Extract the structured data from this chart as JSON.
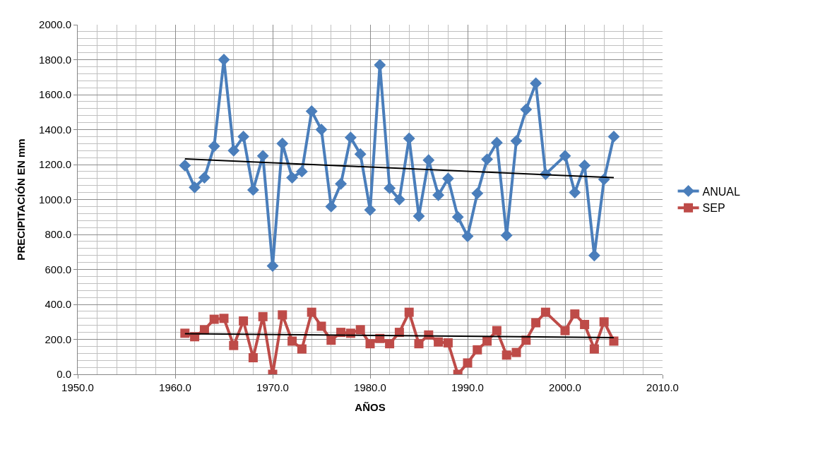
{
  "chart_data": {
    "type": "line",
    "xlabel": "AÑOS",
    "ylabel": "PRECIPITACIÓN EN mm",
    "x": [
      1961,
      1962,
      1963,
      1964,
      1965,
      1966,
      1967,
      1968,
      1969,
      1970,
      1971,
      1972,
      1973,
      1974,
      1975,
      1976,
      1977,
      1978,
      1979,
      1980,
      1981,
      1982,
      1983,
      1984,
      1985,
      1986,
      1987,
      1988,
      1989,
      1990,
      1991,
      1992,
      1993,
      1994,
      1995,
      1996,
      1997,
      1998,
      2000,
      2001,
      2002,
      2003,
      2004,
      2005
    ],
    "series": [
      {
        "name": "ANUAL",
        "color": "#4a7ebb",
        "marker": "diamond",
        "values": [
          1195,
          1070,
          1125,
          1305,
          1800,
          1280,
          1360,
          1055,
          1250,
          620,
          1320,
          1125,
          1160,
          1505,
          1400,
          960,
          1090,
          1355,
          1260,
          940,
          1770,
          1065,
          1000,
          1350,
          905,
          1225,
          1025,
          1120,
          900,
          790,
          1035,
          1230,
          1325,
          795,
          1335,
          1515,
          1665,
          1145,
          1250,
          1040,
          1195,
          680,
          1115,
          1360
        ]
      },
      {
        "name": "SEP",
        "color": "#be4b48",
        "marker": "square",
        "values": [
          235,
          215,
          255,
          315,
          320,
          165,
          305,
          95,
          330,
          0,
          340,
          190,
          145,
          355,
          275,
          195,
          240,
          235,
          255,
          175,
          205,
          175,
          240,
          355,
          175,
          225,
          185,
          180,
          0,
          65,
          140,
          190,
          250,
          110,
          125,
          195,
          295,
          355,
          250,
          345,
          285,
          145,
          300,
          190
        ]
      },
      {
        "type": "line",
        "color": "#000000",
        "marker": "none",
        "values": [
          1232,
          null,
          null,
          null,
          null,
          null,
          null,
          null,
          null,
          null,
          null,
          null,
          null,
          null,
          null,
          null,
          null,
          null,
          null,
          null,
          null,
          null,
          null,
          null,
          null,
          null,
          null,
          null,
          null,
          null,
          null,
          null,
          null,
          null,
          null,
          null,
          null,
          null,
          null,
          null,
          null,
          null,
          null,
          1125
        ]
      },
      {
        "type": "line",
        "color": "#000000",
        "marker": "none",
        "values": [
          232,
          null,
          null,
          null,
          null,
          null,
          null,
          null,
          null,
          null,
          null,
          null,
          null,
          null,
          null,
          null,
          null,
          null,
          null,
          null,
          null,
          null,
          null,
          null,
          null,
          null,
          null,
          null,
          null,
          null,
          null,
          null,
          null,
          null,
          null,
          null,
          null,
          null,
          null,
          null,
          null,
          null,
          null,
          210
        ]
      }
    ],
    "xlim": [
      1950,
      2010
    ],
    "xticks": [
      {
        "value": 1950,
        "label": "1950.0"
      },
      {
        "value": 1960,
        "label": "1960.0"
      },
      {
        "value": 1970,
        "label": "1970.0"
      },
      {
        "value": 1980,
        "label": "1980.0"
      },
      {
        "value": 1990,
        "label": "1990.0"
      },
      {
        "value": 2000,
        "label": "2000.0"
      },
      {
        "value": 2010,
        "label": "2010.0"
      }
    ],
    "ylim": [
      0,
      2000
    ],
    "yticks": [
      {
        "value": 0,
        "label": "0.0"
      },
      {
        "value": 200,
        "label": "200.0"
      },
      {
        "value": 400,
        "label": "400.0"
      },
      {
        "value": 600,
        "label": "600.0"
      },
      {
        "value": 800,
        "label": "800.0"
      },
      {
        "value": 1000,
        "label": "1000.0"
      },
      {
        "value": 1200,
        "label": "1200.0"
      },
      {
        "value": 1400,
        "label": "1400.0"
      },
      {
        "value": 1600,
        "label": "1600.0"
      },
      {
        "value": 1800,
        "label": "1800.0"
      },
      {
        "value": 2000,
        "label": "2000.0"
      }
    ],
    "grid": true,
    "legend": "right"
  }
}
